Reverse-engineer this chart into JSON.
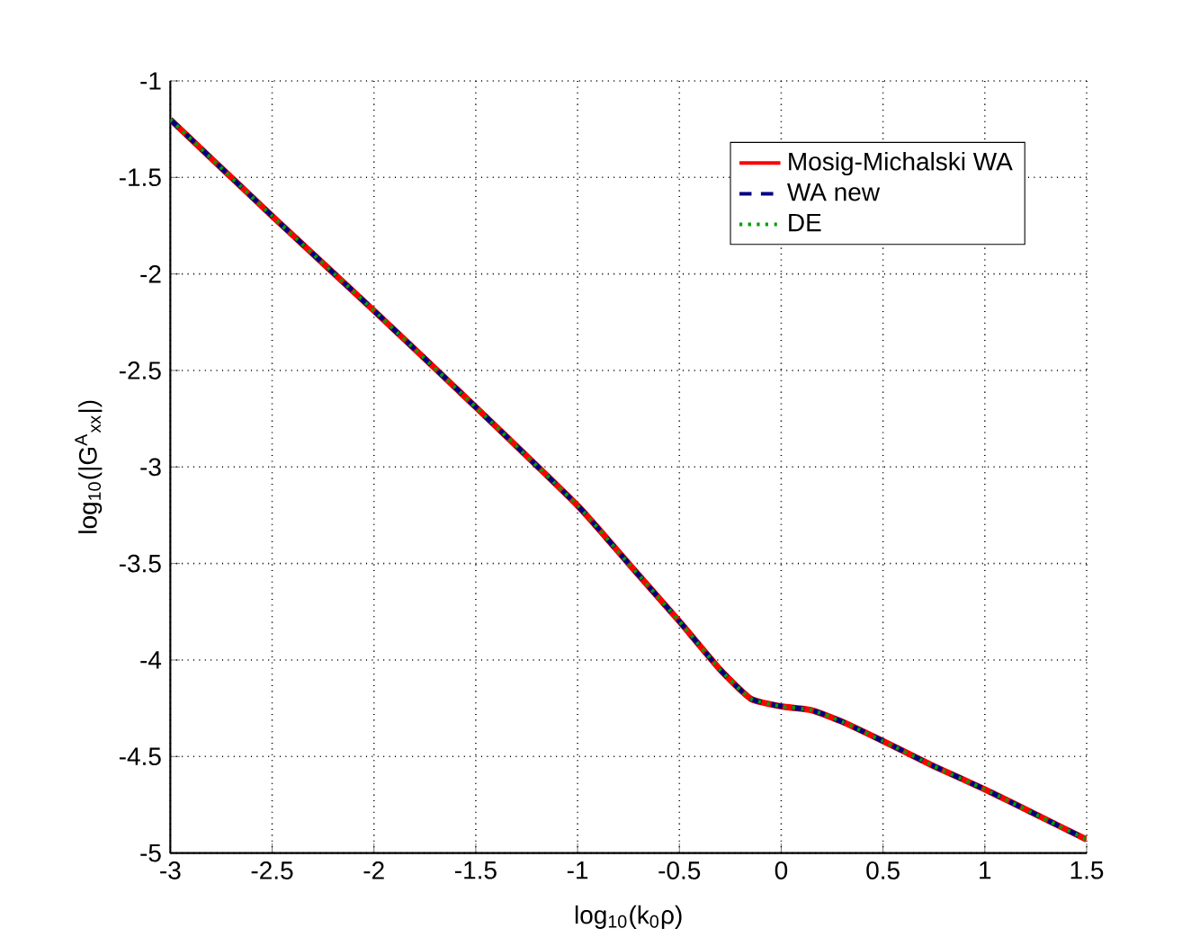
{
  "chart_data": {
    "type": "line",
    "xlabel": "log$_{10}$(k$_{0}$ρ)",
    "ylabel": "log$_{10}$(|G$^{A}$$_{xx}$|)",
    "x": [
      -3,
      -2.5,
      -2,
      -1.5,
      -1,
      -0.75,
      -0.5,
      -0.3,
      -0.15,
      0,
      0.15,
      0.3,
      0.5,
      0.75,
      1,
      1.25,
      1.5
    ],
    "series": [
      {
        "name": "Mosig-Michalski WA",
        "color": "#ff0000",
        "line_style": "solid",
        "values": [
          -1.2,
          -1.7,
          -2.19,
          -2.69,
          -3.2,
          -3.5,
          -3.8,
          -4.05,
          -4.2,
          -4.24,
          -4.26,
          -4.32,
          -4.42,
          -4.55,
          -4.67,
          -4.8,
          -4.93
        ]
      },
      {
        "name": "WA new",
        "color": "#000080",
        "line_style": "dashed",
        "values": [
          -1.2,
          -1.7,
          -2.19,
          -2.69,
          -3.2,
          -3.5,
          -3.8,
          -4.05,
          -4.2,
          -4.24,
          -4.26,
          -4.32,
          -4.42,
          -4.55,
          -4.67,
          -4.8,
          -4.93
        ]
      },
      {
        "name": "DE",
        "color": "#00a000",
        "line_style": "dotted",
        "values": [
          -1.2,
          -1.7,
          -2.19,
          -2.69,
          -3.2,
          -3.5,
          -3.8,
          -4.05,
          -4.2,
          -4.24,
          -4.26,
          -4.32,
          -4.42,
          -4.55,
          -4.67,
          -4.8,
          -4.93
        ]
      }
    ],
    "xlim": [
      -3,
      1.5
    ],
    "ylim": [
      -5,
      -1
    ],
    "xticks": [
      -3,
      -2.5,
      -2,
      -1.5,
      -1,
      -0.5,
      0,
      0.5,
      1,
      1.5
    ],
    "yticks": [
      -5,
      -4.5,
      -4,
      -3.5,
      -3,
      -2.5,
      -2,
      -1.5,
      -1
    ],
    "grid": true,
    "legend": "top right"
  }
}
